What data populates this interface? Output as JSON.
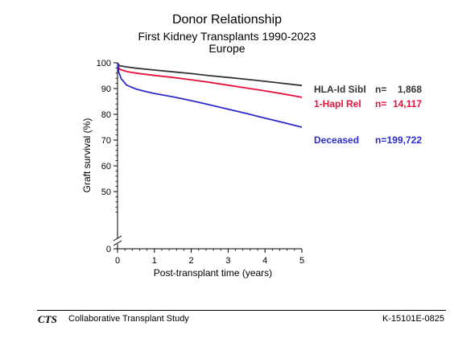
{
  "chart_data": {
    "type": "line",
    "title": "Donor Relationship",
    "subtitle": [
      "First Kidney Transplants 1990-2023",
      "Europe"
    ],
    "xlabel": "Post-transplant time (years)",
    "ylabel": "Graft survival (%)",
    "xlim": [
      0,
      5
    ],
    "ylim": [
      40,
      100
    ],
    "axis_break": true,
    "x_ticks": [
      "0",
      "1",
      "2",
      "3",
      "4",
      "5"
    ],
    "y_ticks": [
      "0",
      "50",
      "60",
      "70",
      "80",
      "90",
      "100"
    ],
    "grid": false,
    "legend_placement": "right",
    "series": [
      {
        "name": "HLA-Id Sibl",
        "n_label": "n=",
        "n_value": "1,868",
        "color": "#333333",
        "x": [
          0,
          0.05,
          0.25,
          0.5,
          1,
          1.5,
          2,
          2.5,
          3,
          3.5,
          4,
          4.5,
          5
        ],
        "y": [
          100,
          98.9,
          98.4,
          97.9,
          97.2,
          96.5,
          95.8,
          95.0,
          94.3,
          93.6,
          92.8,
          92.0,
          91.2
        ]
      },
      {
        "name": "1-Hapl Rel",
        "n_label": "n=",
        "n_value": "14,117",
        "color": "#e8103c",
        "x": [
          0,
          0.05,
          0.25,
          0.5,
          1,
          1.5,
          2,
          2.5,
          3,
          3.5,
          4,
          4.5,
          5
        ],
        "y": [
          100,
          97.5,
          96.6,
          96.0,
          95.1,
          94.3,
          93.4,
          92.4,
          91.3,
          90.2,
          89.1,
          87.9,
          86.6
        ]
      },
      {
        "name": "Deceased",
        "n_label": "n=",
        "n_value": "199,722",
        "color": "#2b2bc8",
        "x": [
          0,
          0.03,
          0.1,
          0.25,
          0.5,
          0.75,
          1,
          1.5,
          2,
          2.5,
          3,
          3.5,
          4,
          4.5,
          5
        ],
        "y": [
          100,
          96.5,
          93.8,
          91.3,
          89.8,
          88.9,
          88.1,
          86.8,
          85.3,
          83.7,
          82.0,
          80.3,
          78.5,
          76.8,
          75.0
        ]
      }
    ]
  },
  "footer": {
    "logo": "CTS",
    "org": "Collaborative Transplant Study",
    "code": "K-15101E-0825"
  }
}
